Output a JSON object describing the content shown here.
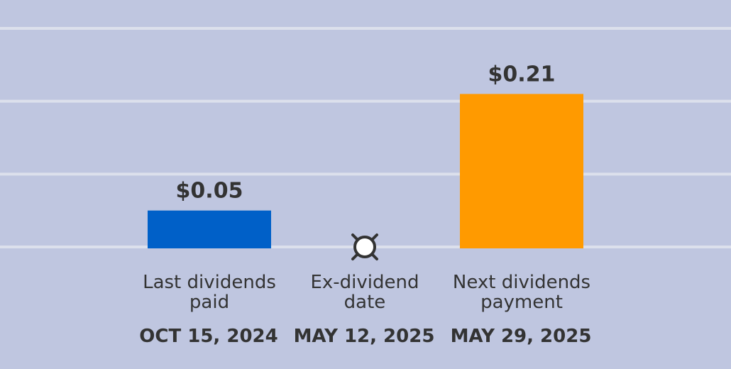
{
  "chart_data": {
    "type": "bar",
    "grid": true,
    "ylim": [
      0,
      0.3
    ],
    "items": [
      {
        "kind": "bar",
        "label_lines": [
          "Last dividends",
          "paid"
        ],
        "date": "OCT 15, 2024",
        "value": 0.05,
        "value_label": "$0.05",
        "color": "#0060c8"
      },
      {
        "kind": "marker",
        "label_lines": [
          "Ex-dividend",
          "date"
        ],
        "date": "MAY 12, 2025",
        "icon": "ex-dividend-marker-icon"
      },
      {
        "kind": "bar",
        "label_lines": [
          "Next dividends",
          "payment"
        ],
        "date": "MAY 29, 2025",
        "value": 0.21,
        "value_label": "$0.21",
        "color": "#ff9a00"
      }
    ]
  },
  "colors": {
    "background": "#bfc6e0",
    "gridline": "#dce0ec",
    "text": "#333333"
  }
}
